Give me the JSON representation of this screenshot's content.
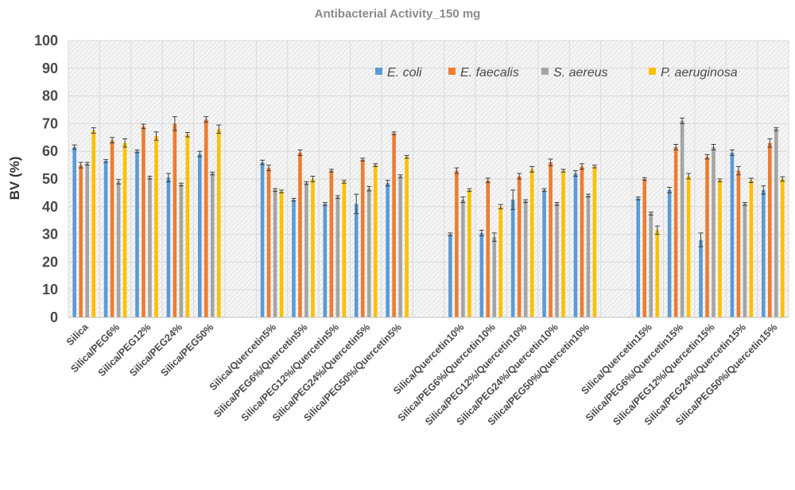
{
  "chart_data": {
    "type": "bar",
    "title": "Antibacterial Activity_150 mg",
    "xlabel": "",
    "ylabel": "BV (%)",
    "ylim": [
      0,
      100
    ],
    "yticks": [
      0,
      10,
      20,
      30,
      40,
      50,
      60,
      70,
      80,
      90,
      100
    ],
    "grid": true,
    "legend_position": "top-right",
    "categories": [
      "Silica",
      "Silica/PEG6%",
      "Silica/PEG12%",
      "Silica/PEG24%",
      "Silica/PEG50%",
      "",
      "Silica/Quercetin5%",
      "Silica/PEG6%/Quercetin5%",
      "Silica/PEG12%/Quercetin5%",
      "Silica/PEG24%/Quercetin5%",
      "Silica/PEG50%/Quercetin5%",
      "",
      "Silica/Quercetin10%",
      "Silica/PEG6%/Quercetin10%",
      "Silica/PEG12%/Quercetin10%",
      "Silica/PEG24%/Quercetin10%",
      "Silica/PEG50%/Quercetin10%",
      "",
      "Silica/Quercetin15%",
      "Silica/PEG6%/Quercetin15%",
      "Silica/PEG12%/Quercetin15%",
      "Silica/PEG24%/Quercetin15%",
      "Silica/PEG50%/Quercetin15%"
    ],
    "series": [
      {
        "name": "E. coli",
        "color": "#5b9bd5",
        "values": [
          61.5,
          56.5,
          60,
          50.5,
          59,
          null,
          56,
          42.5,
          41,
          41,
          48.5,
          null,
          30,
          30.5,
          42.5,
          46,
          52,
          null,
          43,
          46,
          28,
          59.5,
          46
        ],
        "errors": [
          0.8,
          0.5,
          0.5,
          1.5,
          1,
          null,
          0.8,
          0.5,
          0.5,
          3.5,
          1,
          null,
          0.5,
          1,
          3.5,
          0.5,
          1,
          null,
          0.5,
          1,
          2.5,
          1,
          1.5
        ]
      },
      {
        "name": "E. faecalis",
        "color": "#ed7d31",
        "values": [
          55,
          64,
          69,
          70,
          71.5,
          null,
          54,
          59.5,
          53,
          57,
          66.5,
          null,
          53,
          49.5,
          51,
          56,
          54.5,
          null,
          50,
          61.5,
          58,
          53,
          63
        ],
        "errors": [
          1,
          1,
          0.8,
          2.5,
          1,
          null,
          1,
          1,
          0.5,
          0.5,
          0.5,
          null,
          1,
          0.8,
          1,
          1.2,
          1,
          null,
          0.5,
          1,
          0.8,
          1.5,
          1.5
        ]
      },
      {
        "name": "S. aereus",
        "color": "#a5a5a5",
        "values": [
          55.5,
          49,
          50.5,
          48,
          52,
          null,
          46,
          48.5,
          43.5,
          46.5,
          51,
          null,
          42.5,
          29,
          42,
          41,
          44,
          null,
          37.5,
          71,
          61.5,
          41,
          68
        ],
        "errors": [
          0.5,
          0.8,
          0.5,
          0.5,
          0.5,
          null,
          0.5,
          0.5,
          0.5,
          0.8,
          0.5,
          null,
          1,
          1.5,
          0.5,
          0.5,
          0.5,
          null,
          0.5,
          1,
          1,
          0.5,
          0.5
        ]
      },
      {
        "name": "P. aeruginosa",
        "color": "#ffc000",
        "values": [
          67.5,
          63,
          65.5,
          66,
          68,
          null,
          45.5,
          50,
          49,
          55,
          58,
          null,
          46,
          40,
          53.5,
          53,
          54.5,
          null,
          31.5,
          51,
          49.5,
          49.5,
          50
        ],
        "errors": [
          1,
          1.5,
          1.5,
          0.8,
          1.5,
          null,
          0.5,
          1,
          0.5,
          0.5,
          0.5,
          null,
          0.5,
          0.8,
          1,
          0.5,
          0.5,
          null,
          1.5,
          1,
          0.5,
          0.8,
          0.8
        ]
      }
    ]
  }
}
